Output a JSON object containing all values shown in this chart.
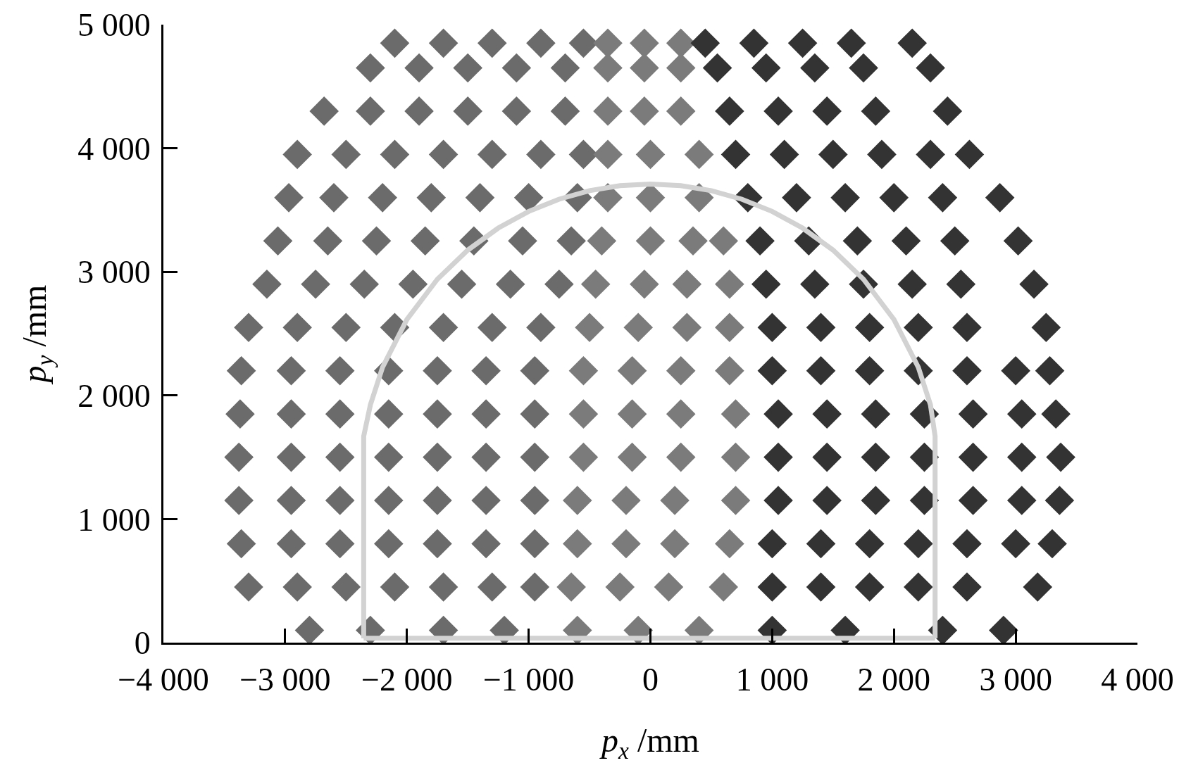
{
  "chart_data": {
    "type": "scatter",
    "xlabel": "p$_{x}$ /mm",
    "ylabel": "p$_{y}$ /mm",
    "xlim": [
      -4000,
      4000
    ],
    "ylim": [
      0,
      5000
    ],
    "xticks": [
      {
        "value": -4000,
        "label": "−4 000"
      },
      {
        "value": -3000,
        "label": "−3 000"
      },
      {
        "value": -2000,
        "label": "−2 000"
      },
      {
        "value": -1000,
        "label": "−1 000"
      },
      0,
      {
        "value": 1000,
        "label": "1 000"
      },
      {
        "value": 2000,
        "label": "2 000"
      },
      {
        "value": 3000,
        "label": "3 000"
      },
      {
        "value": 4000,
        "label": "4 000"
      }
    ],
    "yticks": [
      0,
      {
        "value": 1000,
        "label": "1 000"
      },
      {
        "value": 2000,
        "label": "2 000"
      },
      {
        "value": 3000,
        "label": "3 000"
      },
      {
        "value": 4000,
        "label": "4 000"
      },
      {
        "value": 5000,
        "label": "5 000"
      }
    ],
    "grid": false,
    "marker": "diamond",
    "series": [
      {
        "color": "#6b6b6b",
        "x": [
          -2100,
          -1700,
          -1300,
          -900,
          -550,
          -2300,
          -1900,
          -1500,
          -1100,
          -700,
          -2680,
          -2300,
          -1900,
          -1500,
          -1100,
          -700,
          -2900,
          -2500,
          -2100,
          -1700,
          -1300,
          -900,
          -550,
          -2970,
          -2600,
          -2200,
          -1800,
          -1400,
          -1000,
          -600,
          -3060,
          -2650,
          -2250,
          -1850,
          -1450,
          -1050,
          -650,
          -3150,
          -2750,
          -2350,
          -1950,
          -1550,
          -1150,
          -750,
          -3300,
          -2900,
          -2500,
          -2100,
          -1700,
          -1300,
          -900,
          -3360,
          -2950,
          -2550,
          -2150,
          -1750,
          -1350,
          -950,
          -3370,
          -2950,
          -2550,
          -2150,
          -1750,
          -1350,
          -950,
          -3380,
          -2950,
          -2550,
          -2150,
          -1750,
          -1350,
          -950,
          -3380,
          -2950,
          -2550,
          -2150,
          -1750,
          -1350,
          -950,
          -3360,
          -2950,
          -2550,
          -2150,
          -1750,
          -1350,
          -950,
          -3300,
          -2900,
          -2500,
          -2100,
          -1700,
          -1300,
          -950,
          -2800,
          -2300,
          -1700,
          -1200
        ],
        "values": [
          4850,
          4850,
          4850,
          4850,
          4850,
          4650,
          4650,
          4650,
          4650,
          4650,
          4300,
          4300,
          4300,
          4300,
          4300,
          4300,
          3950,
          3950,
          3950,
          3950,
          3950,
          3950,
          3950,
          3600,
          3600,
          3600,
          3600,
          3600,
          3600,
          3600,
          3250,
          3250,
          3250,
          3250,
          3250,
          3250,
          3250,
          2900,
          2900,
          2900,
          2900,
          2900,
          2900,
          2900,
          2550,
          2550,
          2550,
          2550,
          2550,
          2550,
          2550,
          2200,
          2200,
          2200,
          2200,
          2200,
          2200,
          2200,
          1850,
          1850,
          1850,
          1850,
          1850,
          1850,
          1850,
          1500,
          1500,
          1500,
          1500,
          1500,
          1500,
          1500,
          1150,
          1150,
          1150,
          1150,
          1150,
          1150,
          1150,
          800,
          800,
          800,
          800,
          800,
          800,
          800,
          450,
          450,
          450,
          450,
          450,
          450,
          450,
          100,
          100,
          100,
          100
        ]
      },
      {
        "color": "#7b7b7b",
        "x": [
          -350,
          -50,
          250,
          -350,
          -50,
          250,
          -350,
          -50,
          250,
          -350,
          0,
          400,
          -350,
          0,
          400,
          -400,
          0,
          350,
          600,
          -450,
          -50,
          300,
          650,
          -500,
          -100,
          300,
          650,
          -550,
          -150,
          250,
          650,
          -550,
          -150,
          250,
          700,
          -550,
          -150,
          250,
          700,
          -600,
          -200,
          200,
          700,
          -600,
          -200,
          200,
          650,
          -650,
          -250,
          150,
          600,
          -600,
          -100,
          400
        ],
        "values": [
          4850,
          4850,
          4850,
          4650,
          4650,
          4650,
          4300,
          4300,
          4300,
          3950,
          3950,
          3950,
          3600,
          3600,
          3600,
          3250,
          3250,
          3250,
          3250,
          2900,
          2900,
          2900,
          2900,
          2550,
          2550,
          2550,
          2550,
          2200,
          2200,
          2200,
          2200,
          1850,
          1850,
          1850,
          1850,
          1500,
          1500,
          1500,
          1500,
          1150,
          1150,
          1150,
          1150,
          800,
          800,
          800,
          800,
          450,
          450,
          450,
          450,
          100,
          100,
          100
        ]
      },
      {
        "color": "#333333",
        "x": [
          450,
          850,
          1250,
          1650,
          2150,
          550,
          950,
          1350,
          1750,
          2300,
          650,
          1050,
          1450,
          1850,
          2440,
          700,
          1100,
          1500,
          1900,
          2300,
          2620,
          800,
          1200,
          1600,
          2000,
          2400,
          2870,
          900,
          1300,
          1700,
          2100,
          2500,
          3020,
          950,
          1350,
          1750,
          2150,
          2550,
          3150,
          1000,
          1400,
          1800,
          2200,
          2600,
          3250,
          1000,
          1400,
          1800,
          2200,
          2600,
          3000,
          3280,
          1050,
          1450,
          1850,
          2250,
          2650,
          3050,
          3330,
          1050,
          1450,
          1850,
          2250,
          2650,
          3050,
          3370,
          1050,
          1450,
          1850,
          2250,
          2650,
          3050,
          3360,
          1000,
          1400,
          1800,
          2200,
          2600,
          3000,
          3300,
          1000,
          1400,
          1800,
          2200,
          2600,
          3180,
          1000,
          1600,
          2400,
          2900
        ],
        "values": [
          4850,
          4850,
          4850,
          4850,
          4850,
          4650,
          4650,
          4650,
          4650,
          4650,
          4300,
          4300,
          4300,
          4300,
          4300,
          3950,
          3950,
          3950,
          3950,
          3950,
          3950,
          3600,
          3600,
          3600,
          3600,
          3600,
          3600,
          3250,
          3250,
          3250,
          3250,
          3250,
          3250,
          2900,
          2900,
          2900,
          2900,
          2900,
          2900,
          2550,
          2550,
          2550,
          2550,
          2550,
          2550,
          2200,
          2200,
          2200,
          2200,
          2200,
          2200,
          2200,
          1850,
          1850,
          1850,
          1850,
          1850,
          1850,
          1850,
          1500,
          1500,
          1500,
          1500,
          1500,
          1500,
          1500,
          1150,
          1150,
          1150,
          1150,
          1150,
          1150,
          1150,
          800,
          800,
          800,
          800,
          800,
          800,
          800,
          450,
          450,
          450,
          450,
          450,
          450,
          100,
          100,
          100,
          100
        ]
      },
      {
        "type": "line",
        "color": "#d2d2d2",
        "marker": "none",
        "line_style": "solid",
        "x": [
          -2355,
          -2355,
          -2300,
          -2200,
          -2000,
          -1750,
          -1500,
          -1250,
          -1000,
          -750,
          -500,
          -250,
          0,
          250,
          500,
          750,
          1000,
          1250,
          1500,
          1750,
          2000,
          2200,
          2300,
          2338,
          2338
        ],
        "values": [
          35,
          1670,
          1924,
          2228,
          2615,
          2940,
          3176,
          3354,
          3489,
          3588,
          3657,
          3697,
          3710,
          3697,
          3657,
          3588,
          3489,
          3354,
          3176,
          2940,
          2615,
          2228,
          1924,
          1670,
          35
        ]
      },
      {
        "type": "line",
        "color": "#d2d2d2",
        "marker": "none",
        "line_style": "solid",
        "x": [
          -2355,
          2338
        ],
        "values": [
          35,
          35
        ]
      }
    ]
  }
}
